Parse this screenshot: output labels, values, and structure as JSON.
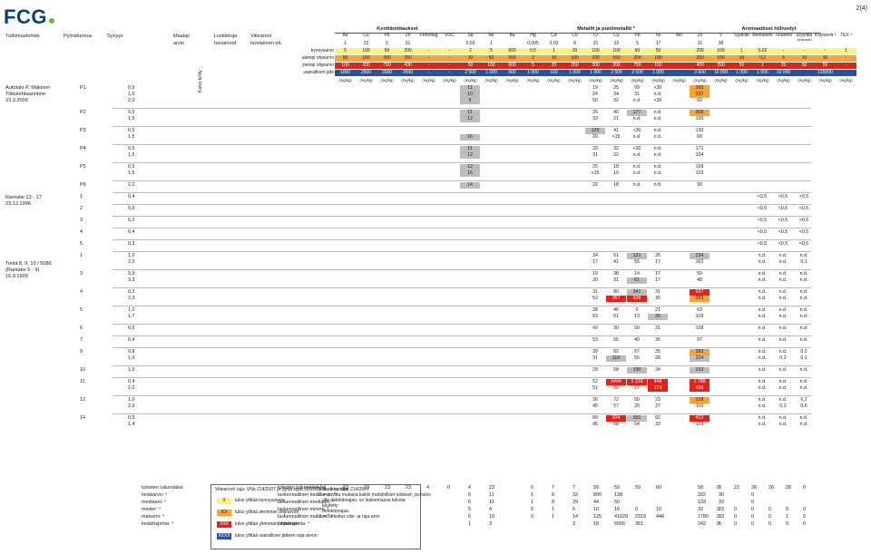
{
  "header": {
    "brand": "FCG",
    "page": "2(4)"
  },
  "columns": {
    "left": [
      "Tutkimuskohde",
      "Pyörätunnus",
      "Syvyys",
      "Maalaji",
      "Lisätietoja",
      "Viitearvot"
    ],
    "left_sub": [
      "",
      "",
      "",
      "arvio",
      "havainnot",
      "luontainen pit."
    ],
    "vertical": "Kaivu tehty",
    "group_field": "Kenttämittaukset",
    "group_metals": "Metallit ja puolimetallit *",
    "group_aromatic": "Aromaattiset hiilivedyt",
    "field_cols": [
      "As",
      "Cu",
      "Pb",
      "Zn",
      "Petroflag",
      "VOC"
    ],
    "metal_cols": [
      "Sb",
      "As",
      "Ba",
      "Hg",
      "Cd",
      "Co",
      "Cr",
      "Cu",
      "Pb",
      "Ni",
      "Mo",
      "Zn",
      "V",
      "Syanidi"
    ],
    "aro_cols": [
      "Bentseeni",
      "Tolueeni",
      "Etyylibe\nntseeni",
      "Ksyleenit ²",
      "TEX ³"
    ]
  },
  "limits": {
    "labels": [
      "kynnysarvo",
      "alempi ohjearvo",
      "ylempi ohjearvo",
      "vaarallinen jäte"
    ],
    "nat": [
      "1",
      "22",
      "5",
      "31",
      "",
      "",
      "0,03",
      "1",
      "",
      "0,005",
      "0,03",
      "8",
      "31",
      "22",
      "5",
      "17",
      "",
      "31",
      "38",
      "",
      "",
      "",
      "",
      "",
      ""
    ],
    "kynnys": [
      "5",
      "100",
      "60",
      "200",
      "-",
      "-",
      "2",
      "5",
      "600",
      "0,5",
      "1",
      "20",
      "100",
      "100",
      "60",
      "50",
      "",
      "200",
      "100",
      "1",
      "0,02",
      "-",
      "-",
      "-",
      "1"
    ],
    "alempi": [
      "50",
      "150",
      "200",
      "250",
      "-",
      "-",
      "10",
      "50",
      "600",
      "2",
      "10",
      "100",
      "200",
      "150",
      "200",
      "100",
      "",
      "250",
      "150",
      "10",
      "0,2",
      "5",
      "10",
      "10",
      "-"
    ],
    "ylempi": [
      "100",
      "200",
      "750",
      "400",
      "-",
      "-",
      "50",
      "100",
      "600",
      "5",
      "20",
      "250",
      "300",
      "200",
      "750",
      "150",
      "",
      "400",
      "250",
      "50",
      "1",
      "25",
      "50",
      "50",
      "-"
    ],
    "vaarallinen": [
      "1000",
      "2500",
      "2500",
      "2500",
      "-",
      "-",
      "2 500",
      "1 000",
      "600",
      "1 000",
      "100",
      "1 000",
      "1 000",
      "2 500",
      "2 500",
      "1 000",
      "",
      "2 500",
      "10 000",
      "1 000",
      "1 000",
      "10 000",
      "",
      "125000",
      ""
    ],
    "units": "(mg/kg)"
  },
  "sites": [
    {
      "name": "Autotalo P. Mäkinen\nTikkutehtaanrinne\n23.3.2000"
    },
    {
      "name": "Rantatie 13 - 17\n23.12.1996"
    },
    {
      "name": "Tontit 8, 9, 10 / 5086\n(Rantatie 5 - 9)\n16.9.1999"
    }
  ],
  "rows": [
    {
      "pyora": "P1",
      "syv": "0,5",
      "vals": {
        "Sb": "11",
        "Cr": "19",
        "Cu": "25",
        "Pb": "99",
        "Ni": "<30",
        "Zn": "260"
      },
      "hl": {
        "Sb": "grey",
        "Zn": "orange"
      }
    },
    {
      "pyora": "",
      "syv": "1,0",
      "vals": {
        "Sb": "10",
        "Cr": "24",
        "Cu": "34",
        "Pb": "31",
        "Ni": "n.d.",
        "Zn": "237"
      },
      "hl": {
        "Sb": "grey",
        "Zn": "orange"
      }
    },
    {
      "pyora": "",
      "syv": "2,0",
      "vals": {
        "Sb": "9",
        "Cr": "50",
        "Cu": "32",
        "Pb": "n.d.",
        "Ni": "<30",
        "Zn": "69"
      },
      "hl": {
        "Sb": "grey"
      }
    },
    {
      "pyora": "P2",
      "syv": "0,5",
      "vals": {
        "Sb": "11",
        "Cr": "25",
        "Cu": "40",
        "Pb": "177",
        "Ni": "n.d.",
        "Zn": "309"
      },
      "hl": {
        "Sb": "grey",
        "Pb": "grey",
        "Zn": "orange"
      }
    },
    {
      "pyora": "",
      "syv": "1,5",
      "vals": {
        "Sb": "12",
        "Cr": "33",
        "Cu": "21",
        "Pb": "n.d.",
        "Ni": "n.d.",
        "Zn": "100"
      },
      "hl": {
        "Sb": "grey"
      }
    },
    {
      "pyora": "P3",
      "syv": "0,5",
      "vals": {
        "Cr": "125",
        "Cu": "41",
        "Pb": "<30",
        "Ni": "n.d.",
        "Zn": "130"
      },
      "hl": {
        "Cr": "grey"
      }
    },
    {
      "pyora": "",
      "syv": "1,5",
      "vals": {
        "Sb": "16",
        "Cr": "20",
        "Cu": "<15",
        "Pb": "n.d.",
        "Ni": "n.d.",
        "Zn": "69"
      },
      "hl": {
        "Sb": "grey"
      }
    },
    {
      "pyora": "P4",
      "syv": "0,5",
      "vals": {
        "Sb": "11",
        "Cr": "33",
        "Cu": "32",
        "Pb": "<30",
        "Ni": "n.d.",
        "Zn": "171"
      },
      "hl": {
        "Sb": "grey"
      }
    },
    {
      "pyora": "",
      "syv": "1,5",
      "vals": {
        "Sb": "12",
        "Cr": "31",
        "Cu": "22",
        "Pb": "n.d.",
        "Ni": "n.d.",
        "Zn": "104"
      },
      "hl": {
        "Sb": "grey"
      }
    },
    {
      "pyora": "P5",
      "syv": "0,5",
      "vals": {
        "Sb": "12",
        "Cr": "25",
        "Cu": "18",
        "Pb": "n.d.",
        "Ni": "n.d.",
        "Zn": "109"
      },
      "hl": {
        "Sb": "grey"
      }
    },
    {
      "pyora": "",
      "syv": "1,5",
      "vals": {
        "Sb": "16",
        "Cr": "<15",
        "Cu": "19",
        "Pb": "n.d.",
        "Ni": "n.d.",
        "Zn": "103"
      },
      "hl": {
        "Sb": "grey"
      }
    },
    {
      "pyora": "P6",
      "syv": "1,0",
      "vals": {
        "Sb": "14",
        "Cr": "22",
        "Cu": "18",
        "Pb": "n.d.",
        "Ni": "n.d.",
        "Zn": "90"
      },
      "hl": {
        "Sb": "grey"
      }
    },
    {
      "pyora": "1",
      "syv": "0,4",
      "vals": {
        "Bentseeni": "<0,5",
        "Tolueeni": "<0,5",
        "Etyylibentseeni": "<0,5"
      },
      "hl": {}
    },
    {
      "pyora": "2",
      "syv": "0,5",
      "vals": {
        "Bentseeni": "<0,5",
        "Tolueeni": "<0,5",
        "Etyylibentseeni": "<0,5"
      },
      "hl": {}
    },
    {
      "pyora": "3",
      "syv": "0,2",
      "vals": {
        "Bentseeni": "<0,5",
        "Tolueeni": "<0,5",
        "Etyylibentseeni": "<0,5"
      },
      "hl": {}
    },
    {
      "pyora": "4",
      "syv": "0,4",
      "vals": {
        "Bentseeni": "<0,5",
        "Tolueeni": "<0,5",
        "Etyylibentseeni": "<0,5"
      },
      "hl": {}
    },
    {
      "pyora": "5",
      "syv": "0,3",
      "vals": {
        "Bentseeni": "<0,5",
        "Tolueeni": "<0,5",
        "Etyylibentseeni": "<0,5"
      },
      "hl": {}
    },
    {
      "pyora": "1",
      "syv": "1,0",
      "vals": {
        "Cr": "34",
        "Cu": "51",
        "Pb": "121",
        "Ni": "26",
        "Zn": "234",
        "Bentseeni": "n.d.",
        "Tolueeni": "n.d.",
        "Etyylibentseeni": "n.d."
      },
      "hl": {
        "Pb": "grey",
        "Zn": "grey"
      }
    },
    {
      "pyora": "",
      "syv": "2,0",
      "vals": {
        "Cr": "17",
        "Cu": "41",
        "Pb": "55",
        "Ni": "17",
        "Zn": "162",
        "Bentseeni": "n.d.",
        "Tolueeni": "n.d.",
        "Etyylibentseeni": "0,1"
      },
      "hl": {}
    },
    {
      "pyora": "3",
      "syv": "0,5",
      "vals": {
        "Cr": "19",
        "Cu": "38",
        "Pb": "14",
        "Ni": "17",
        "Zn": "59",
        "Bentseeni": "n.d.",
        "Tolueeni": "n.d.",
        "Etyylibentseeni": "n.d."
      },
      "hl": {}
    },
    {
      "pyora": "",
      "syv": "3,3",
      "vals": {
        "Cr": "20",
        "Cu": "31",
        "Pb": "61",
        "Ni": "17",
        "Zn": "48",
        "Bentseeni": "n.d.",
        "Tolueeni": "n.d.",
        "Etyylibentseeni": "n.d."
      },
      "hl": {
        "Pb": "grey"
      }
    },
    {
      "pyora": "4",
      "syv": "0,3",
      "vals": {
        "Cr": "31",
        "Cu": "80",
        "Pb": "341",
        "Ni": "31",
        "Zn": "637",
        "Bentseeni": "n.d.",
        "Tolueeni": "n.d.",
        "Etyylibentseeni": "n.d."
      },
      "hl": {
        "Pb": "grey",
        "Zn": "red"
      }
    },
    {
      "pyora": "",
      "syv": "2,3",
      "vals": {
        "Cr": "52",
        "Cu": "367",
        "Pb": "938",
        "Ni": "35",
        "Zn": "355",
        "Bentseeni": "n.d.",
        "Tolueeni": "n.d.",
        "Etyylibentseeni": "n.d."
      },
      "hl": {
        "Cu": "red",
        "Pb": "red",
        "Zn": "orange"
      }
    },
    {
      "pyora": "5",
      "syv": "1,0",
      "vals": {
        "Cr": "28",
        "Cu": "46",
        "Pb": "0",
        "Ni": "21",
        "Zn": "63",
        "Bentseeni": "n.d.",
        "Tolueeni": "n.d.",
        "Etyylibentseeni": "n.d."
      },
      "hl": {}
    },
    {
      "pyora": "",
      "syv": "1,7",
      "vals": {
        "Cr": "63",
        "Cu": "51",
        "Pb": "13",
        "Ni": "35",
        "Zn": "109",
        "Bentseeni": "n.d.",
        "Tolueeni": "n.d.",
        "Etyylibentseeni": "n.d."
      },
      "hl": {
        "Ni": "grey"
      }
    },
    {
      "pyora": "6",
      "syv": "0,5",
      "vals": {
        "Cr": "42",
        "Cu": "30",
        "Pb": "50",
        "Ni": "31",
        "Zn": "108",
        "Bentseeni": "n.d.",
        "Tolueeni": "n.d.",
        "Etyylibentseeni": "n.d."
      },
      "hl": {}
    },
    {
      "pyora": "7",
      "syv": "0,4",
      "vals": {
        "Cr": "53",
        "Cu": "55",
        "Pb": "40",
        "Ni": "36",
        "Zn": "97",
        "Bentseeni": "n.d.",
        "Tolueeni": "n.d.",
        "Etyylibentseeni": "n.d."
      },
      "hl": {}
    },
    {
      "pyora": "9",
      "syv": "0,8",
      "vals": {
        "Cr": "39",
        "Cu": "92",
        "Pb": "57",
        "Ni": "25",
        "Zn": "283",
        "Bentseeni": "n.d.",
        "Tolueeni": "n.d.",
        "Etyylibentseeni": "0,2"
      },
      "hl": {
        "Zn": "orange"
      }
    },
    {
      "pyora": "",
      "syv": "1,0",
      "vals": {
        "Cr": "31",
        "Cu": "119",
        "Pb": "56",
        "Ni": "28",
        "Zn": "224",
        "Bentseeni": "n.d.",
        "Tolueeni": "0,2",
        "Etyylibentseeni": "0,1"
      },
      "hl": {
        "Cu": "grey",
        "Zn": "grey"
      }
    },
    {
      "pyora": "10",
      "syv": "1,0",
      "vals": {
        "Cr": "29",
        "Cu": "58",
        "Pb": "130",
        "Ni": "34",
        "Zn": "203",
        "Bentseeni": "n.d.",
        "Tolueeni": "n.d.",
        "Etyylibentseeni": "n.d."
      },
      "hl": {
        "Pb": "grey",
        "Zn": "grey"
      }
    },
    {
      "pyora": "11",
      "syv": "0,4",
      "vals": {
        "Cr": "52",
        "Cu": "####",
        "Pb": "2 319",
        "Ni": "448",
        "Zn": "1 788",
        "Bentseeni": "n.d.",
        "Tolueeni": "n.d.",
        "Etyylibentseeni": "n.d."
      },
      "hl": {
        "Cu": "red",
        "Pb": "red",
        "Ni": "red",
        "Zn": "red"
      }
    },
    {
      "pyora": "",
      "syv": "1,0",
      "vals": {
        "Cr": "51",
        "Cu": "95",
        "Pb": "27",
        "Ni": "173",
        "Zn": "456",
        "Bentseeni": "n.d.",
        "Tolueeni": "n.d.",
        "Etyylibentseeni": "n.d."
      },
      "hl": {
        "Ni": "red",
        "Zn": "red"
      }
    },
    {
      "pyora": "12",
      "syv": "1,0",
      "vals": {
        "Cr": "30",
        "Cu": "72",
        "Pb": "50",
        "Ni": "23",
        "Zn": "218",
        "Bentseeni": "n.d.",
        "Tolueeni": "n.d.",
        "Etyylibentseeni": "0,2"
      },
      "hl": {
        "Zn": "orange"
      }
    },
    {
      "pyora": "",
      "syv": "2,0",
      "vals": {
        "Cr": "45",
        "Cu": "57",
        "Pb": "20",
        "Ni": "37",
        "Zn": "110",
        "Bentseeni": "n.d.",
        "Tolueeni": "0,3",
        "Etyylibentseeni": "0,6"
      },
      "hl": {}
    },
    {
      "pyora": "14",
      "syv": "0,5",
      "vals": {
        "Cr": "89",
        "Cu": "204",
        "Pb": "392",
        "Ni": "92",
        "Zn": "412",
        "Bentseeni": "n.d.",
        "Tolueeni": "n.d.",
        "Etyylibentseeni": "n.d."
      },
      "hl": {
        "Cu": "red",
        "Pb": "grey",
        "Zn": "red"
      }
    },
    {
      "pyora": "",
      "syv": "1,4",
      "vals": {
        "Cr": "45",
        "Cu": "58",
        "Pb": "54",
        "Ni": "33",
        "Zn": "103",
        "Bentseeni": "n.d.",
        "Tolueeni": "n.d.",
        "Etyylibentseeni": "n.d."
      },
      "hl": {}
    }
  ],
  "stats": {
    "left_labels": [
      "tulosten lukumäärä",
      "keskiarvo: ⁴",
      "mediaani: ⁴",
      "minimi: ⁴",
      "maksimi: ⁴",
      "keskihajonta: ⁴"
    ],
    "mid_labels": [
      "tulosten lukumäärä [n]",
      "laskennallinen keskiarvo: ⁴",
      "laskennallinen mediaani: ⁴",
      "laskennallinen minimi: ⁴",
      "laskennallinen maksimi: ⁴",
      "keskihajonta: ⁴"
    ],
    "field_n": [
      "23",
      "23",
      "23",
      "23",
      "4",
      "0"
    ],
    "metal_rows": [
      [
        "4",
        "23",
        "",
        "0",
        "7",
        "7",
        "59",
        "59",
        "59",
        "60",
        "",
        "58",
        "3"
      ],
      [
        "6",
        "11",
        "",
        "1",
        "8",
        "32",
        "800",
        "128",
        "",
        "",
        "",
        "202",
        "30"
      ],
      [
        "6",
        "11",
        "",
        "1",
        "8",
        "29",
        "44",
        "50",
        "",
        "",
        "",
        "133",
        "33"
      ],
      [
        "5",
        "4",
        "",
        "0",
        "1",
        "5",
        "10",
        "16",
        "0",
        "10",
        "",
        "32",
        "23"
      ],
      [
        "6",
        "19",
        "",
        "0",
        "1",
        "14",
        "125",
        "41629",
        "2319",
        "448",
        "",
        "1780",
        "33"
      ],
      [
        "1",
        "3",
        "",
        "",
        "",
        "3",
        "18",
        "5506",
        "351",
        "",
        "",
        "242",
        "6"
      ]
    ],
    "aro_rows": [
      [
        "0",
        "22",
        "28",
        "28",
        "28",
        "0"
      ],
      [
        "",
        "",
        "0",
        "",
        "",
        ""
      ],
      [
        "",
        "",
        "0",
        "",
        "",
        ""
      ],
      [
        "0",
        "0",
        "0",
        "0",
        "0",
        "0"
      ],
      [
        "0",
        "0",
        "0",
        "0",
        "1",
        "0"
      ],
      [
        "0",
        "0",
        "0",
        "0",
        "0",
        "0"
      ]
    ]
  },
  "legend": {
    "title": "Viitearvot/ raja- VNa 214/2007 ja Syrjä sijaa 38/2008/tilaannusraja:",
    "items": [
      {
        "code": "X",
        "text": "tulos ylittää kynnysarvon",
        "cls": "row-y"
      },
      {
        "code": "XX",
        "text": "tulos ylittää alemman ohjearvon",
        "cls": "row-o"
      },
      {
        "code": "XXX",
        "text": "tulos ylittää ylemmän ohjearvon",
        "cls": "row-r"
      },
      {
        "code": "XXXX",
        "text": "tulos ylittää vaarallisen jätteen raja-arvon",
        "cls": "row-b"
      }
    ],
    "notes": "1. 5 - 1 ta; VNa 214/2007\n2. = sovittu mukana kaikki mahdolliset tulokset; jos tulos\n   alle detektiorajan, on laskennassa tulosta\n   käytetty\n   detektiorajaa.\n3. = Tarkoitus viisi- ja raja-arvo"
  }
}
